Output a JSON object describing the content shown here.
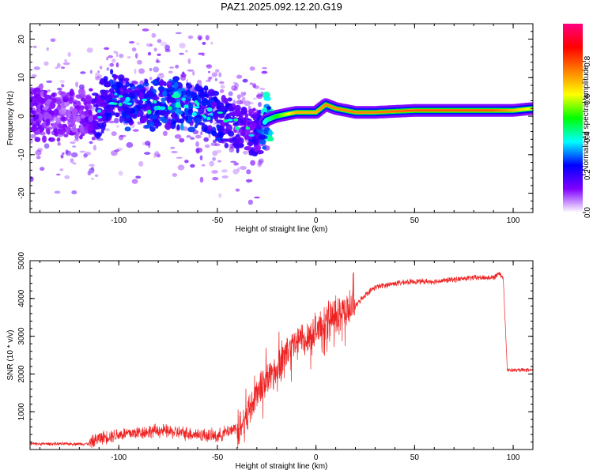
{
  "title": "PAZ1.2025.092.12.20.G19",
  "chart_data": [
    {
      "type": "heatmap",
      "xlabel": "Height of straight line (km)",
      "ylabel": "Frequency (Hz)",
      "xlim": [
        -145,
        110
      ],
      "ylim": [
        -25,
        24
      ],
      "x_ticks": [
        -100,
        -50,
        0,
        50,
        100
      ],
      "x_tick_labels": [
        "-100",
        "-50",
        "0",
        "50",
        "100"
      ],
      "y_ticks": [
        -20,
        -10,
        0,
        10,
        20
      ],
      "y_tick_labels": [
        "-20",
        "-10",
        "0",
        "10",
        "20"
      ],
      "colorbar": {
        "label": "Normalized spectral amplitude",
        "range": [
          0.0,
          1.0
        ],
        "ticks": [
          0.0,
          0.2,
          0.4,
          0.6,
          0.8
        ],
        "tick_labels": [
          "0.0",
          "0.2",
          "0.4",
          "0.6",
          "0.8"
        ],
        "colormap": [
          "#ffffff",
          "#8000ff",
          "#0000ff",
          "#00ffff",
          "#00ff00",
          "#ffff00",
          "#ff8000",
          "#ff0000",
          "#ff0080"
        ]
      },
      "ridge": {
        "x": [
          -145,
          -130,
          -120,
          -110,
          -105,
          -100,
          -90,
          -80,
          -70,
          -60,
          -50,
          -40,
          -30,
          -25,
          -20,
          -10,
          0,
          5,
          10,
          20,
          30,
          50,
          70,
          90,
          100,
          110
        ],
        "frequency": [
          1,
          0,
          0,
          1,
          5,
          4,
          3,
          3,
          4,
          2,
          0,
          -3,
          -4,
          -1,
          0,
          1,
          1,
          3,
          2,
          1,
          1,
          1.5,
          1.5,
          1.5,
          1.5,
          2
        ],
        "amplitude": [
          0.15,
          0.12,
          0.12,
          0.2,
          0.25,
          0.25,
          0.25,
          0.25,
          0.3,
          0.25,
          0.25,
          0.2,
          0.2,
          0.4,
          0.5,
          0.7,
          0.7,
          0.75,
          0.75,
          0.75,
          0.75,
          0.8,
          0.8,
          0.8,
          0.7,
          0.6
        ]
      }
    },
    {
      "type": "line",
      "xlabel": "Height of straight line (km)",
      "ylabel": "SNR (10 * v/v)",
      "xlim": [
        -145,
        110
      ],
      "ylim": [
        0,
        5000
      ],
      "x_ticks": [
        -100,
        -50,
        0,
        50,
        100
      ],
      "x_tick_labels": [
        "-100",
        "-50",
        "0",
        "50",
        "100"
      ],
      "y_ticks": [
        1000,
        2000,
        3000,
        4000,
        5000
      ],
      "y_tick_labels": [
        "1000",
        "2000",
        "3000",
        "4000",
        "5000"
      ],
      "color": "#ee2222",
      "series": [
        {
          "x": [
            -145,
            -130,
            -115,
            -110,
            -100,
            -90,
            -80,
            -70,
            -60,
            -50,
            -40,
            -35,
            -30,
            -25,
            -20,
            -15,
            -10,
            -5,
            0,
            5,
            10,
            15,
            20,
            25,
            30,
            40,
            50,
            60,
            70,
            80,
            90,
            93,
            95,
            97,
            100,
            105,
            110
          ],
          "values": [
            150,
            150,
            150,
            300,
            400,
            450,
            500,
            450,
            400,
            350,
            600,
            900,
            1500,
            1900,
            2100,
            2600,
            2800,
            3000,
            3100,
            3400,
            3500,
            3700,
            3800,
            4100,
            4300,
            4400,
            4450,
            4450,
            4500,
            4550,
            4550,
            4700,
            4500,
            2100,
            2100,
            2100,
            2100
          ]
        }
      ]
    }
  ]
}
